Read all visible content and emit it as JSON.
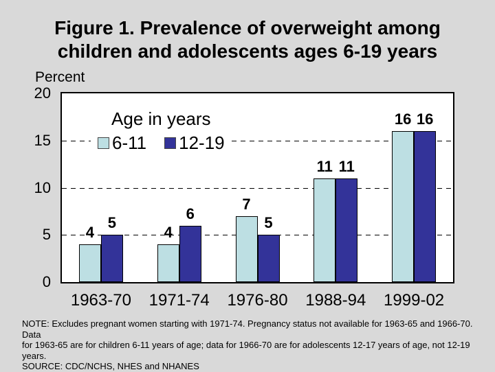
{
  "chart_data": {
    "type": "bar",
    "title_line1": "Figure 1. Prevalence of overweight among",
    "title_line2": "children and adolescents ages 6-19 years",
    "ylabel": "Percent",
    "ylim": [
      0,
      20
    ],
    "yticks": [
      20,
      15,
      10,
      5,
      0
    ],
    "gridlines_at": [
      15,
      10,
      5
    ],
    "grid_on": true,
    "categories": [
      "1963-70",
      "1971-74",
      "1976-80",
      "1988-94",
      "1999-02"
    ],
    "series": [
      {
        "name": "6-11",
        "color": "#BDDFE3",
        "values": [
          4,
          4,
          7,
          11,
          16
        ]
      },
      {
        "name": "12-19",
        "color": "#333399",
        "values": [
          5,
          6,
          5,
          11,
          16
        ]
      }
    ],
    "legend_title": "Age in years",
    "legend_position": "inside-top-left"
  },
  "colors": {
    "background": "#D9D9D9",
    "plot_background": "#FFFFFF",
    "series_6_11": "#BDDFE3",
    "series_12_19": "#333399"
  },
  "notes": {
    "line1": "NOTE:  Excludes pregnant women starting with 1971-74.  Pregnancy status not available for 1963-65 and 1966-70.  Data",
    "line2": "for 1963-65 are for children 6-11 years of age; data for 1966-70 are for adolescents 12-17 years of age, not 12-19 years.",
    "line3": "SOURCE: CDC/NCHS, NHES and NHANES"
  }
}
